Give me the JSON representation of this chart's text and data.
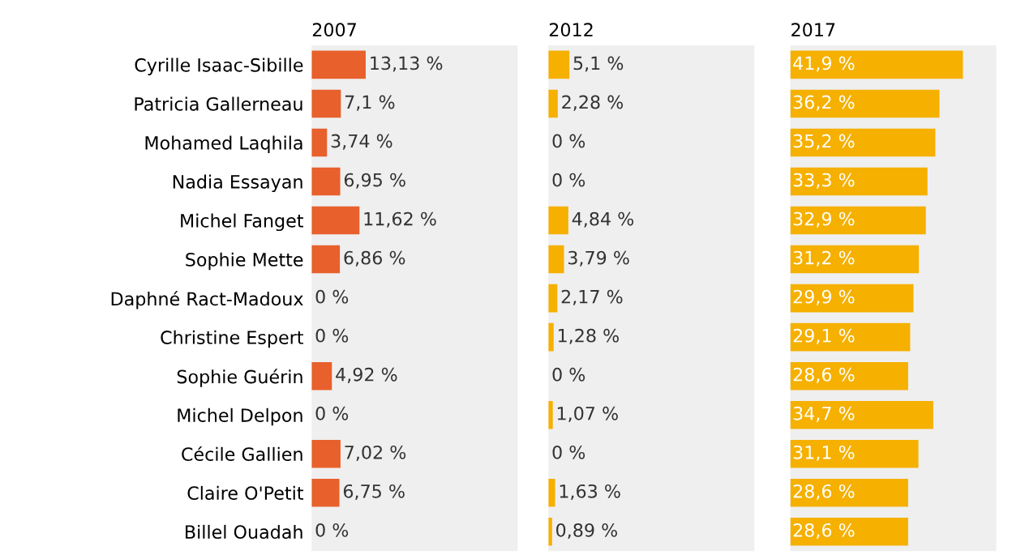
{
  "chart_data": [
    {
      "type": "bar",
      "orientation": "horizontal",
      "title": "2007",
      "categories": [
        "Cyrille Isaac-Sibille",
        "Patricia Gallerneau",
        "Mohamed Laqhila",
        "Nadia Essayan",
        "Michel Fanget",
        "Sophie Mette",
        "Daphné Ract-Madoux",
        "Christine Espert",
        "Sophie Guérin",
        "Michel Delpon",
        "Cécile Gallien",
        "Claire O'Petit",
        "Billel Ouadah"
      ],
      "values": [
        13.13,
        7.1,
        3.74,
        6.95,
        11.62,
        6.86,
        0,
        0,
        4.92,
        0,
        7.02,
        6.75,
        0
      ],
      "value_labels": [
        "13,13 %",
        "7,1 %",
        "3,74 %",
        "6,95 %",
        "11,62 %",
        "6,86 %",
        "0 %",
        "0 %",
        "4,92 %",
        "0 %",
        "7,02 %",
        "6,75 %",
        "0 %"
      ],
      "color": "#e8602c",
      "xlim": [
        0,
        50
      ],
      "tick_labels": "y"
    },
    {
      "type": "bar",
      "orientation": "horizontal",
      "title": "2012",
      "categories": [
        null,
        null,
        null,
        null,
        null,
        null,
        null,
        null,
        null,
        null,
        null,
        null,
        null
      ],
      "values": [
        5.1,
        2.28,
        0,
        0,
        4.84,
        3.79,
        2.17,
        1.28,
        0,
        1.07,
        0,
        1.63,
        0.89
      ],
      "value_labels": [
        "5,1 %",
        "2,28 %",
        "0 %",
        "0 %",
        "4,84 %",
        "3,79 %",
        "2,17 %",
        "1,28 %",
        "0 %",
        "1,07 %",
        "0 %",
        "1,63 %",
        "0,89 %"
      ],
      "color": "#f5b000",
      "xlim": [
        0,
        50
      ],
      "tick_labels": false
    },
    {
      "type": "bar",
      "orientation": "horizontal",
      "title": "2017",
      "categories": [
        null,
        null,
        null,
        null,
        null,
        null,
        null,
        null,
        null,
        null,
        null,
        null,
        null
      ],
      "values": [
        41.9,
        36.2,
        35.2,
        33.3,
        32.9,
        31.2,
        29.9,
        29.1,
        28.6,
        34.7,
        31.1,
        28.6,
        28.6
      ],
      "value_labels": [
        "41,9 %",
        "36,2 %",
        "35,2 %",
        "33,3 %",
        "32,9 %",
        "31,2 %",
        "29,9 %",
        "29,1 %",
        "28,6 %",
        "34,7 %",
        "31,1 %",
        "28,6 %",
        "28,6 %"
      ],
      "color": "#f5b000",
      "xlim": [
        0,
        50
      ],
      "tick_labels": false
    }
  ]
}
